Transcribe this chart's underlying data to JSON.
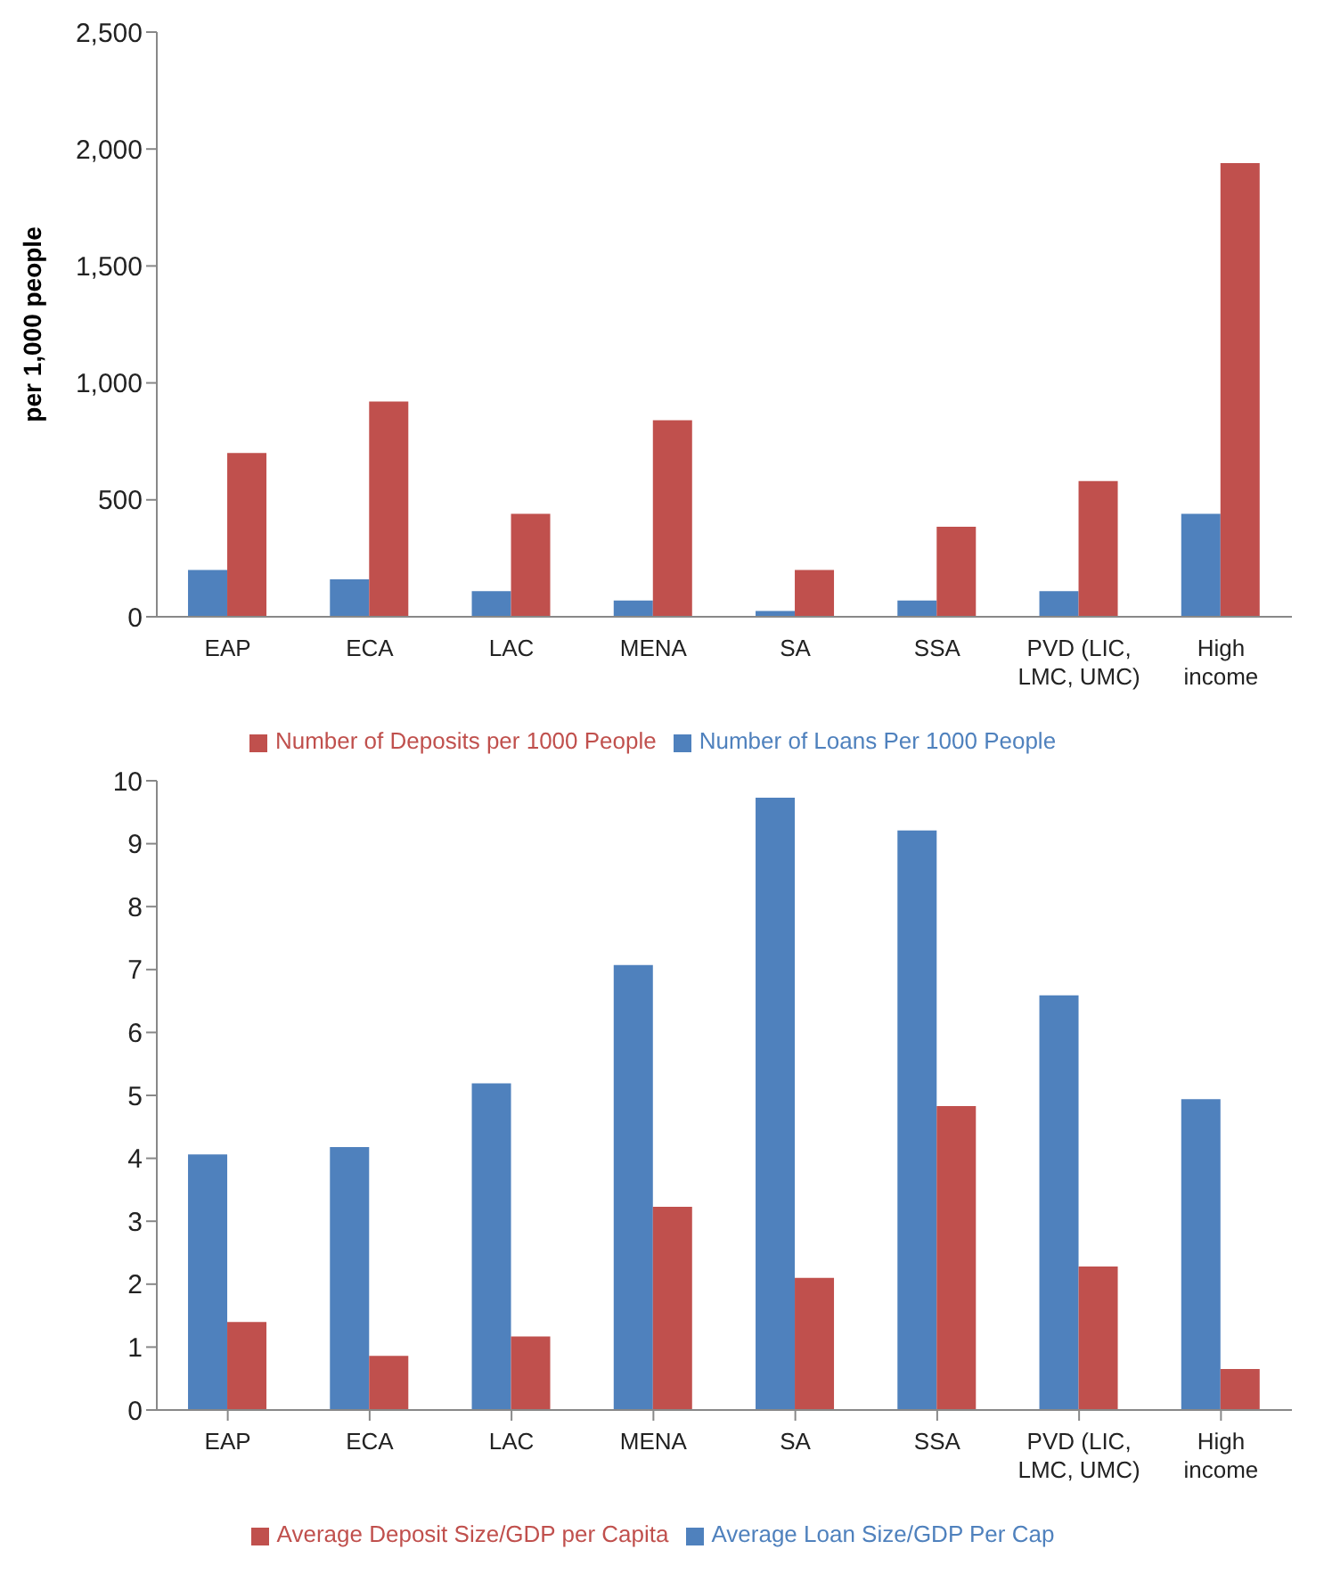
{
  "chart_data": [
    {
      "type": "bar",
      "ylabel": "per 1,000 people",
      "categories": [
        "EAP",
        "ECA",
        "LAC",
        "MENA",
        "SA",
        "SSA",
        "PVD (LIC, LMC, UMC)",
        "High income"
      ],
      "series": [
        {
          "name": "Number of Loans Per 1000 People",
          "color": "#4f81bd",
          "values": [
            200,
            160,
            110,
            70,
            25,
            70,
            110,
            440
          ]
        },
        {
          "name": "Number of Deposits per 1000 People",
          "color": "#c0504d",
          "values": [
            700,
            920,
            440,
            840,
            200,
            385,
            580,
            1940
          ]
        }
      ],
      "ylim": [
        0,
        2500
      ],
      "yticks": [
        {
          "value": 0,
          "label": "0"
        },
        {
          "value": 500,
          "label": "500"
        },
        {
          "value": 1000,
          "label": "1,000"
        },
        {
          "value": 1500,
          "label": "1,500"
        },
        {
          "value": 2000,
          "label": "2,000"
        },
        {
          "value": 2500,
          "label": "2,500"
        }
      ],
      "grid": false,
      "legend": "bottom"
    },
    {
      "type": "bar",
      "categories": [
        "EAP",
        "ECA",
        "LAC",
        "MENA",
        "SA",
        "SSA",
        "PVD (LIC, LMC, UMC)",
        "High income"
      ],
      "series": [
        {
          "name": "Average Loan Size/GDP Per Cap",
          "color": "#4f81bd",
          "values": [
            4.06,
            4.18,
            5.19,
            7.07,
            9.73,
            9.21,
            6.59,
            4.94
          ]
        },
        {
          "name": "Average Deposit Size/GDP per Capita",
          "color": "#c0504d",
          "values": [
            1.4,
            0.86,
            1.17,
            3.23,
            2.1,
            4.83,
            2.28,
            0.65
          ]
        }
      ],
      "ylim": [
        0,
        10
      ],
      "yticks": [
        0,
        1,
        2,
        3,
        4,
        5,
        6,
        7,
        8,
        9,
        10
      ],
      "grid": false,
      "legend": "bottom"
    }
  ]
}
